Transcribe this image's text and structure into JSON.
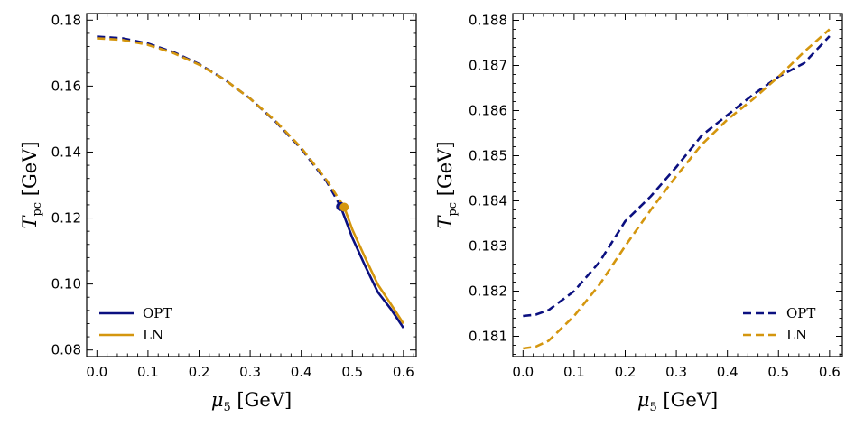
{
  "colors": {
    "opt": "#0b1080",
    "ln": "#d4960e"
  },
  "chart_data": [
    {
      "type": "line",
      "xlabel": "μ5 [GeV]",
      "ylabel": "Tpc [GeV]",
      "xlim": [
        -0.02,
        0.625
      ],
      "ylim": [
        0.078,
        0.182
      ],
      "xticks": [
        0.0,
        0.1,
        0.2,
        0.3,
        0.4,
        0.5,
        0.6
      ],
      "xtick_labels": [
        "0.0",
        "0.1",
        "0.2",
        "0.3",
        "0.4",
        "0.5",
        "0.6"
      ],
      "yticks": [
        0.08,
        0.1,
        0.12,
        0.14,
        0.16,
        0.18
      ],
      "ytick_labels": [
        "0.08",
        "0.10",
        "0.12",
        "0.14",
        "0.16",
        "0.18"
      ],
      "legend": {
        "placement": "bottom-left",
        "entries": [
          {
            "label": "OPT",
            "series": "opt",
            "style": "solid"
          },
          {
            "label": "LN",
            "series": "ln",
            "style": "solid"
          }
        ]
      },
      "series": [
        {
          "name": "OPT",
          "key": "opt",
          "style": "dashed",
          "x": [
            0.0,
            0.05,
            0.1,
            0.15,
            0.2,
            0.25,
            0.3,
            0.35,
            0.4,
            0.45,
            0.477
          ],
          "y": [
            0.175,
            0.1745,
            0.1729,
            0.1703,
            0.1667,
            0.162,
            0.1562,
            0.1492,
            0.141,
            0.131,
            0.1235
          ]
        },
        {
          "name": "LN",
          "key": "ln",
          "style": "dashed",
          "x": [
            0.0,
            0.05,
            0.1,
            0.15,
            0.2,
            0.25,
            0.3,
            0.35,
            0.4,
            0.45,
            0.484
          ],
          "y": [
            0.1745,
            0.174,
            0.1725,
            0.17,
            0.1665,
            0.162,
            0.1562,
            0.1494,
            0.1413,
            0.1314,
            0.1233
          ]
        },
        {
          "name": "OPT",
          "key": "opt",
          "style": "solid",
          "x": [
            0.477,
            0.5,
            0.525,
            0.55,
            0.575,
            0.6
          ],
          "y": [
            0.1235,
            0.114,
            0.1055,
            0.0975,
            0.0925,
            0.0867
          ]
        },
        {
          "name": "LN",
          "key": "ln",
          "style": "solid",
          "x": [
            0.484,
            0.5,
            0.525,
            0.55,
            0.575,
            0.6
          ],
          "y": [
            0.1233,
            0.1165,
            0.108,
            0.0998,
            0.094,
            0.088
          ]
        }
      ],
      "points": [
        {
          "name": "OPT",
          "key": "opt",
          "x": 0.477,
          "y": 0.1235
        },
        {
          "name": "LN",
          "key": "ln",
          "x": 0.484,
          "y": 0.1233
        }
      ]
    },
    {
      "type": "line",
      "xlabel": "μ5 [GeV]",
      "ylabel": "Tpc [GeV]",
      "xlim": [
        -0.02,
        0.625
      ],
      "ylim": [
        0.18055,
        0.18815
      ],
      "xticks": [
        0.0,
        0.1,
        0.2,
        0.3,
        0.4,
        0.5,
        0.6
      ],
      "xtick_labels": [
        "0.0",
        "0.1",
        "0.2",
        "0.3",
        "0.4",
        "0.5",
        "0.6"
      ],
      "yticks": [
        0.181,
        0.182,
        0.183,
        0.184,
        0.185,
        0.186,
        0.187,
        0.188
      ],
      "ytick_labels": [
        "0.181",
        "0.182",
        "0.183",
        "0.184",
        "0.185",
        "0.186",
        "0.187",
        "0.188"
      ],
      "legend": {
        "placement": "bottom-right",
        "entries": [
          {
            "label": "OPT",
            "series": "opt",
            "style": "dashed"
          },
          {
            "label": "LN",
            "series": "ln",
            "style": "dashed"
          }
        ]
      },
      "series": [
        {
          "name": "OPT",
          "key": "opt",
          "style": "dashed",
          "x": [
            0.0,
            0.025,
            0.05,
            0.1,
            0.15,
            0.2,
            0.25,
            0.3,
            0.35,
            0.4,
            0.45,
            0.5,
            0.55,
            0.6
          ],
          "y": [
            0.18145,
            0.18148,
            0.18158,
            0.182,
            0.18265,
            0.18355,
            0.1841,
            0.18475,
            0.18545,
            0.1859,
            0.18635,
            0.18675,
            0.18705,
            0.18765
          ]
        },
        {
          "name": "LN",
          "key": "ln",
          "style": "dashed",
          "x": [
            0.0,
            0.025,
            0.05,
            0.1,
            0.15,
            0.2,
            0.25,
            0.3,
            0.35,
            0.4,
            0.45,
            0.5,
            0.55,
            0.6
          ],
          "y": [
            0.18073,
            0.18077,
            0.1809,
            0.18145,
            0.18215,
            0.183,
            0.1838,
            0.18455,
            0.18525,
            0.1858,
            0.18625,
            0.18675,
            0.1873,
            0.1878
          ]
        }
      ]
    }
  ]
}
